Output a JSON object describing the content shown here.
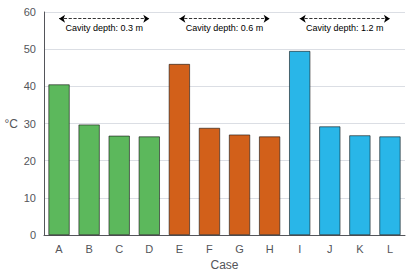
{
  "chart_data": {
    "type": "bar",
    "categories": [
      "A",
      "B",
      "C",
      "D",
      "E",
      "F",
      "G",
      "H",
      "I",
      "J",
      "K",
      "L"
    ],
    "values": [
      40.5,
      29.7,
      26.7,
      26.5,
      46.0,
      28.8,
      27.0,
      26.5,
      49.5,
      29.2,
      26.8,
      26.5
    ],
    "colors": [
      "#5cb85c",
      "#5cb85c",
      "#5cb85c",
      "#5cb85c",
      "#d2601a",
      "#d2601a",
      "#d2601a",
      "#d2601a",
      "#29b6e8",
      "#29b6e8",
      "#29b6e8",
      "#29b6e8"
    ],
    "xlabel": "Case",
    "ylabel": "°C",
    "ylim": [
      0,
      60
    ],
    "yticks": [
      0,
      10,
      20,
      30,
      40,
      50,
      60
    ],
    "grid": true,
    "annotations": [
      {
        "text": "Cavity depth: 0.3 m",
        "from": "A",
        "to": "D"
      },
      {
        "text": "Cavity depth: 0.6 m",
        "from": "E",
        "to": "H"
      },
      {
        "text": "Cavity depth: 1.2 m",
        "from": "I",
        "to": "L"
      }
    ]
  }
}
